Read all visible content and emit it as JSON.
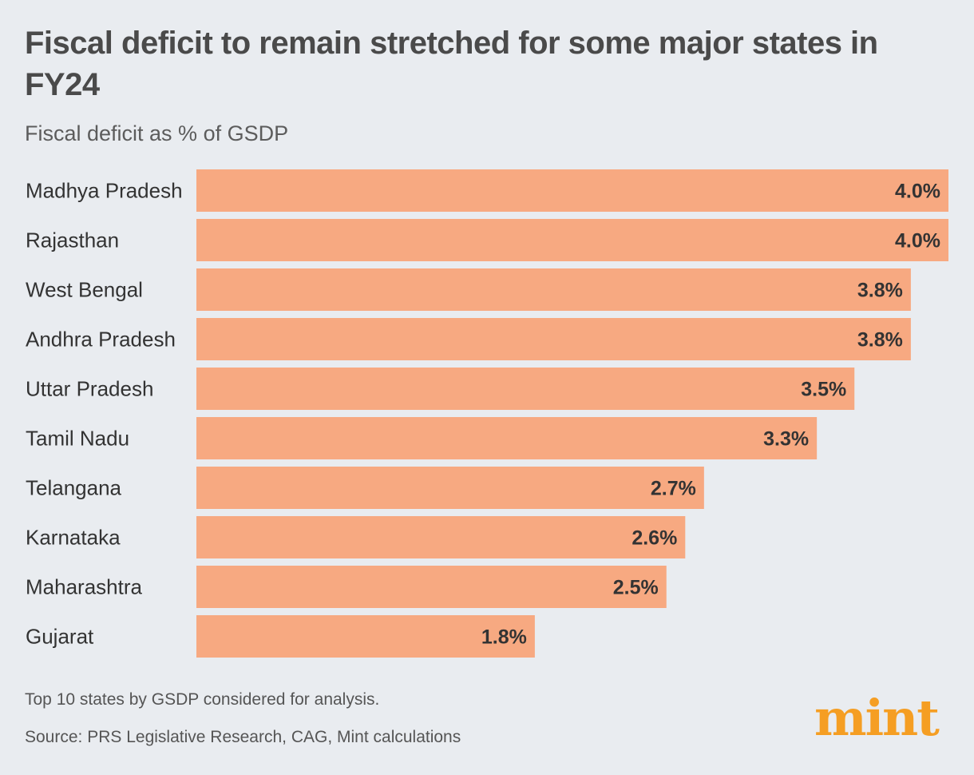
{
  "title": "Fiscal deficit to remain stretched for some major states in FY24",
  "subtitle": "Fiscal deficit as % of GSDP",
  "notes": {
    "footnote": "Top 10 states by GSDP considered for analysis.",
    "source": "Source: PRS Legislative Research, CAG, Mint calculations"
  },
  "logo": "mint",
  "colors": {
    "bar": "#f7a981",
    "label": "#333333",
    "logo": "#f59e23",
    "background": "#e9ecf0"
  },
  "chart_data": {
    "type": "bar",
    "orientation": "horizontal",
    "title": "Fiscal deficit to remain stretched for some major states in FY24",
    "subtitle": "Fiscal deficit as % of GSDP",
    "categories": [
      "Madhya Pradesh",
      "Rajasthan",
      "West Bengal",
      "Andhra Pradesh",
      "Uttar Pradesh",
      "Tamil Nadu",
      "Telangana",
      "Karnataka",
      "Maharashtra",
      "Gujarat"
    ],
    "values": [
      4.0,
      4.0,
      3.8,
      3.8,
      3.5,
      3.3,
      2.7,
      2.6,
      2.5,
      1.8
    ],
    "value_labels": [
      "4.0%",
      "4.0%",
      "3.8%",
      "3.8%",
      "3.5%",
      "3.3%",
      "2.7%",
      "2.6%",
      "2.5%",
      "1.8%"
    ],
    "xlim": [
      0,
      4.0
    ],
    "grid": false,
    "legend": "none"
  }
}
